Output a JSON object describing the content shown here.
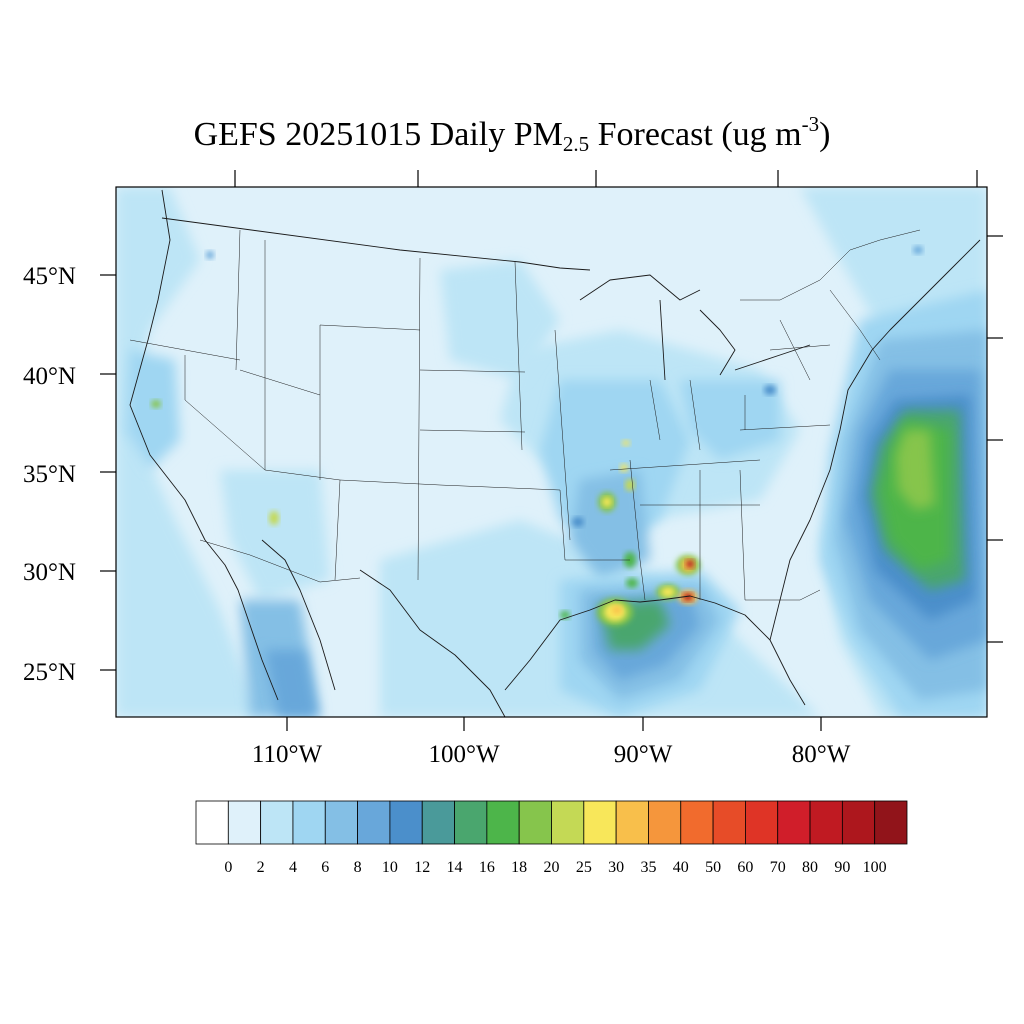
{
  "title": {
    "prefix": "GEFS 20251015 Daily PM",
    "subscript": "2.5",
    "middle": " Forecast (ug m",
    "superscript": "-3",
    "suffix": ")"
  },
  "map": {
    "lon_range": [
      -121,
      -72
    ],
    "lat_range": [
      22.5,
      49.5
    ],
    "lat_ticks": [
      {
        "value": 45,
        "label": "45°N"
      },
      {
        "value": 40,
        "label": "40°N"
      },
      {
        "value": 35,
        "label": "35°N"
      },
      {
        "value": 30,
        "label": "30°N"
      },
      {
        "value": 25,
        "label": "25°N"
      }
    ],
    "lon_ticks": [
      {
        "value": -110,
        "label": "110°W"
      },
      {
        "value": -100,
        "label": "100°W"
      },
      {
        "value": -90,
        "label": "90°W"
      },
      {
        "value": -80,
        "label": "80°W"
      }
    ]
  },
  "colorbar": {
    "levels": [
      "0",
      "2",
      "4",
      "6",
      "8",
      "10",
      "12",
      "14",
      "16",
      "18",
      "20",
      "25",
      "30",
      "35",
      "40",
      "50",
      "60",
      "70",
      "80",
      "90",
      "100"
    ],
    "colors": [
      "#ffffff",
      "#dff1fa",
      "#bde5f6",
      "#9fd6f2",
      "#84bfe5",
      "#68a7da",
      "#4b8fcb",
      "#4a9a9a",
      "#4aa66e",
      "#4db54a",
      "#86c54c",
      "#c4d955",
      "#f8e75a",
      "#f8bf4b",
      "#f5963c",
      "#f16b2d",
      "#e74c28",
      "#df3426",
      "#d01e2a",
      "#c01a22",
      "#ad171d",
      "#91141a"
    ]
  },
  "field_colors": {
    "ocean": "#dff1fa",
    "land_low": "#dff1fa",
    "land_mid": "#bde5f6",
    "land_high": "#9fd6f2",
    "plume_light": "#84bfe5",
    "plume": "#68a7da",
    "plume_deep": "#4b8fcb",
    "green_dark": "#4aa66e",
    "green": "#4db54a",
    "green_light": "#86c54c",
    "yellow_green": "#c4d955",
    "yellow": "#f8e75a",
    "orange": "#f8bf4b",
    "red": "#df3426",
    "dark_red": "#ad171d"
  }
}
